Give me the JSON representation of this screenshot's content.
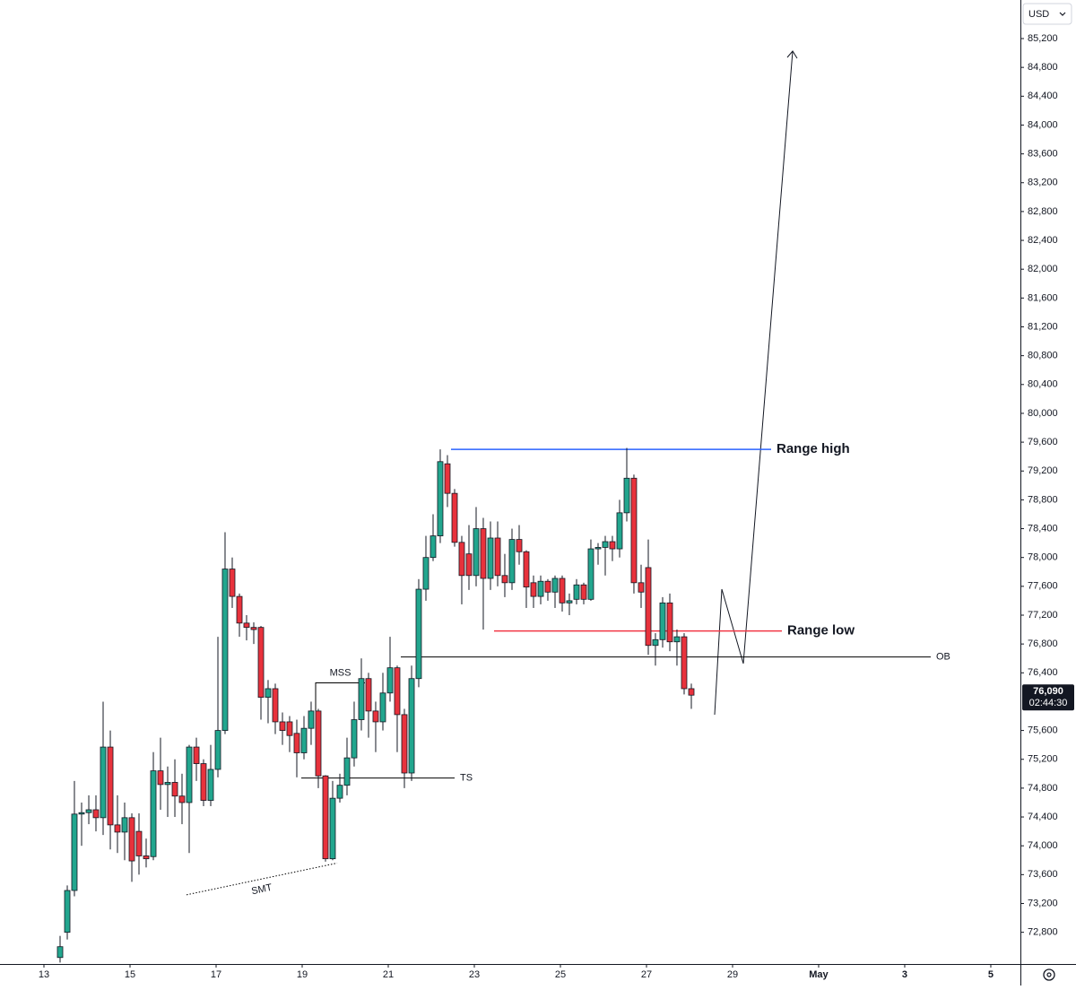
{
  "chart_data": {
    "type": "candlestick",
    "currency": "USD",
    "up_color": "#22a68e",
    "down_color": "#e8323c",
    "xlim": [
      11.979,
      35.688
    ],
    "ylim": [
      72360,
      85735
    ],
    "xticks": [
      13,
      15,
      17,
      19,
      21,
      23,
      25,
      27,
      29,
      {
        "value": 31,
        "label": "May"
      },
      {
        "value": 33,
        "label": "3"
      },
      {
        "value": 35,
        "label": "5"
      }
    ],
    "yticks": [
      {
        "value": 72800,
        "label": "72,800"
      },
      {
        "value": 73200,
        "label": "73,200"
      },
      {
        "value": 73600,
        "label": "73,600"
      },
      {
        "value": 74000,
        "label": "74,000"
      },
      {
        "value": 74400,
        "label": "74,400"
      },
      {
        "value": 74800,
        "label": "74,800"
      },
      {
        "value": 75200,
        "label": "75,200"
      },
      {
        "value": 75600,
        "label": "75,600"
      },
      {
        "value": 76400,
        "label": "76,400"
      },
      {
        "value": 76800,
        "label": "76,800"
      },
      {
        "value": 77200,
        "label": "77,200"
      },
      {
        "value": 77600,
        "label": "77,600"
      },
      {
        "value": 78000,
        "label": "78,000"
      },
      {
        "value": 78400,
        "label": "78,400"
      },
      {
        "value": 78800,
        "label": "78,800"
      },
      {
        "value": 79200,
        "label": "79,200"
      },
      {
        "value": 79600,
        "label": "79,600"
      },
      {
        "value": 80000,
        "label": "80,000"
      },
      {
        "value": 80400,
        "label": "80,400"
      },
      {
        "value": 80800,
        "label": "80,800"
      },
      {
        "value": 81200,
        "label": "81,200"
      },
      {
        "value": 81600,
        "label": "81,600"
      },
      {
        "value": 82000,
        "label": "82,000"
      },
      {
        "value": 82400,
        "label": "82,400"
      },
      {
        "value": 82800,
        "label": "82,800"
      },
      {
        "value": 83200,
        "label": "83,200"
      },
      {
        "value": 83600,
        "label": "83,600"
      },
      {
        "value": 84000,
        "label": "84,000"
      },
      {
        "value": 84400,
        "label": "84,400"
      },
      {
        "value": 84800,
        "label": "84,800"
      },
      {
        "value": 85200,
        "label": "85,200"
      }
    ],
    "last_price": {
      "value": 76090,
      "label": "76,090"
    },
    "countdown": "02:44:30",
    "x": [
      13.375,
      13.542,
      13.708,
      13.875,
      14.042,
      14.208,
      14.375,
      14.542,
      14.708,
      14.875,
      15.042,
      15.208,
      15.375,
      15.542,
      15.708,
      15.875,
      16.042,
      16.208,
      16.375,
      16.542,
      16.708,
      16.875,
      17.042,
      17.208,
      17.375,
      17.542,
      17.708,
      17.875,
      18.042,
      18.208,
      18.375,
      18.542,
      18.708,
      18.875,
      19.042,
      19.208,
      19.375,
      19.542,
      19.708,
      19.875,
      20.042,
      20.208,
      20.375,
      20.542,
      20.708,
      20.875,
      21.042,
      21.208,
      21.375,
      21.542,
      21.708,
      21.875,
      22.042,
      22.208,
      22.375,
      22.542,
      22.708,
      22.875,
      23.042,
      23.208,
      23.375,
      23.542,
      23.708,
      23.875,
      24.042,
      24.208,
      24.375,
      24.542,
      24.708,
      24.875,
      25.042,
      25.208,
      25.375,
      25.542,
      25.708,
      25.875,
      26.042,
      26.208,
      26.375,
      26.542,
      26.708,
      26.875,
      27.042,
      27.208,
      27.375,
      27.542,
      27.708,
      27.875,
      28.042
    ],
    "series": [
      {
        "open": [
          72450,
          72800,
          73380,
          74440,
          74460,
          74500,
          74390,
          75370,
          74290,
          74190,
          74390,
          74200,
          73860,
          73850,
          75040,
          74850,
          74880,
          74690,
          74600,
          75370,
          75140,
          74630,
          75060,
          75600,
          77840,
          77460,
          77090,
          77030,
          77030,
          76060,
          76180,
          75720,
          75720,
          75560,
          75290,
          75630,
          75870,
          74970,
          73820,
          74660,
          74840,
          75220,
          75750,
          76320,
          75870,
          75720,
          76120,
          76470,
          75820,
          75010,
          76320,
          77560,
          78000,
          78300,
          79300,
          78890,
          78210,
          78050,
          77750,
          78400,
          77710,
          78270,
          77750,
          77650,
          78250,
          78080,
          77650,
          77460,
          77670,
          77520,
          77710,
          77370,
          77420,
          77620,
          77420,
          78120,
          78140,
          78220,
          78120,
          78620,
          79100,
          77650,
          77860,
          76780,
          76860,
          77370,
          76830,
          76900,
          76180
        ],
        "high": [
          72750,
          73450,
          74900,
          74600,
          74700,
          74700,
          76000,
          75600,
          74700,
          74600,
          74450,
          74450,
          74100,
          75300,
          75500,
          75100,
          75200,
          75000,
          75400,
          75500,
          75200,
          75400,
          76900,
          78350,
          78000,
          77500,
          77200,
          77100,
          77050,
          76300,
          76250,
          75850,
          75800,
          75750,
          75800,
          76000,
          75900,
          74980,
          74900,
          75000,
          75500,
          76000,
          76600,
          76400,
          76000,
          76400,
          76900,
          76500,
          75900,
          76500,
          77700,
          78300,
          78600,
          79500,
          79420,
          78950,
          78300,
          78450,
          78700,
          78550,
          78500,
          78500,
          78050,
          78400,
          78450,
          78100,
          77750,
          77750,
          77700,
          77750,
          77750,
          77500,
          77700,
          77650,
          78250,
          78200,
          78300,
          78300,
          78800,
          79520,
          79150,
          77900,
          78250,
          76950,
          77450,
          77500,
          77000,
          76950,
          76250
        ],
        "low": [
          72380,
          72700,
          73300,
          74000,
          74300,
          74200,
          74150,
          73950,
          73900,
          73800,
          73500,
          73600,
          73700,
          73800,
          74500,
          74400,
          74400,
          74300,
          73900,
          74900,
          74550,
          74550,
          74950,
          75550,
          77300,
          76900,
          76850,
          76800,
          75750,
          75700,
          75550,
          75400,
          75300,
          74950,
          75200,
          75400,
          74800,
          73780,
          73800,
          74600,
          74700,
          75100,
          75600,
          75500,
          75300,
          75600,
          76000,
          75300,
          74800,
          74900,
          76200,
          77400,
          77950,
          78200,
          78700,
          78150,
          77350,
          77550,
          77600,
          77000,
          77550,
          77600,
          77450,
          77550,
          77900,
          77300,
          77300,
          77350,
          77400,
          77300,
          77250,
          77200,
          77350,
          77350,
          77400,
          77900,
          77750,
          77950,
          78000,
          78500,
          77500,
          77300,
          76650,
          76500,
          76750,
          76700,
          76500,
          76100,
          75900
        ],
        "close": [
          72600,
          73380,
          74440,
          74460,
          74500,
          74390,
          75370,
          74290,
          74190,
          74390,
          73790,
          73860,
          73820,
          75040,
          74850,
          74880,
          74690,
          74600,
          75370,
          75140,
          74630,
          75060,
          75600,
          77840,
          77460,
          77090,
          77030,
          77000,
          76060,
          76180,
          75720,
          75600,
          75530,
          75290,
          75630,
          75870,
          74970,
          73820,
          74660,
          74840,
          75220,
          75750,
          76320,
          75870,
          75720,
          76120,
          76470,
          75820,
          75010,
          76320,
          77560,
          78000,
          78300,
          79330,
          78890,
          78210,
          77750,
          77750,
          78400,
          77710,
          78270,
          77750,
          77650,
          78250,
          78080,
          77590,
          77460,
          77670,
          77520,
          77710,
          77370,
          77400,
          77620,
          77420,
          78120,
          78140,
          78220,
          78120,
          78620,
          79100,
          77650,
          77520,
          76780,
          76860,
          77370,
          76830,
          76900,
          76180,
          76090
        ]
      }
    ],
    "annotations": [
      {
        "text": "Range high",
        "color": "#2962ff",
        "x": [
          22.458,
          29.896
        ],
        "y": [
          79500,
          79500
        ]
      },
      {
        "text": "Range low",
        "color": "#f23645",
        "x": [
          23.458,
          30.146
        ],
        "y": [
          76980,
          76980
        ]
      },
      {
        "text": "OB",
        "color": "#000000",
        "x": [
          21.292,
          33.604
        ],
        "y": [
          76620,
          76620
        ]
      },
      {
        "text": "TS",
        "color": "#000000",
        "x": [
          18.979,
          22.542
        ],
        "y": [
          74940,
          74940
        ]
      },
      {
        "text": "MSS",
        "color": "#000000",
        "x": [
          19.313,
          19.313,
          20.458
        ],
        "y": [
          75870,
          76260,
          76260
        ]
      },
      {
        "text": "SMT",
        "color": "#000000",
        "style": "dotted",
        "x": [
          16.313,
          19.813
        ],
        "y": [
          73320,
          73760
        ]
      }
    ]
  }
}
